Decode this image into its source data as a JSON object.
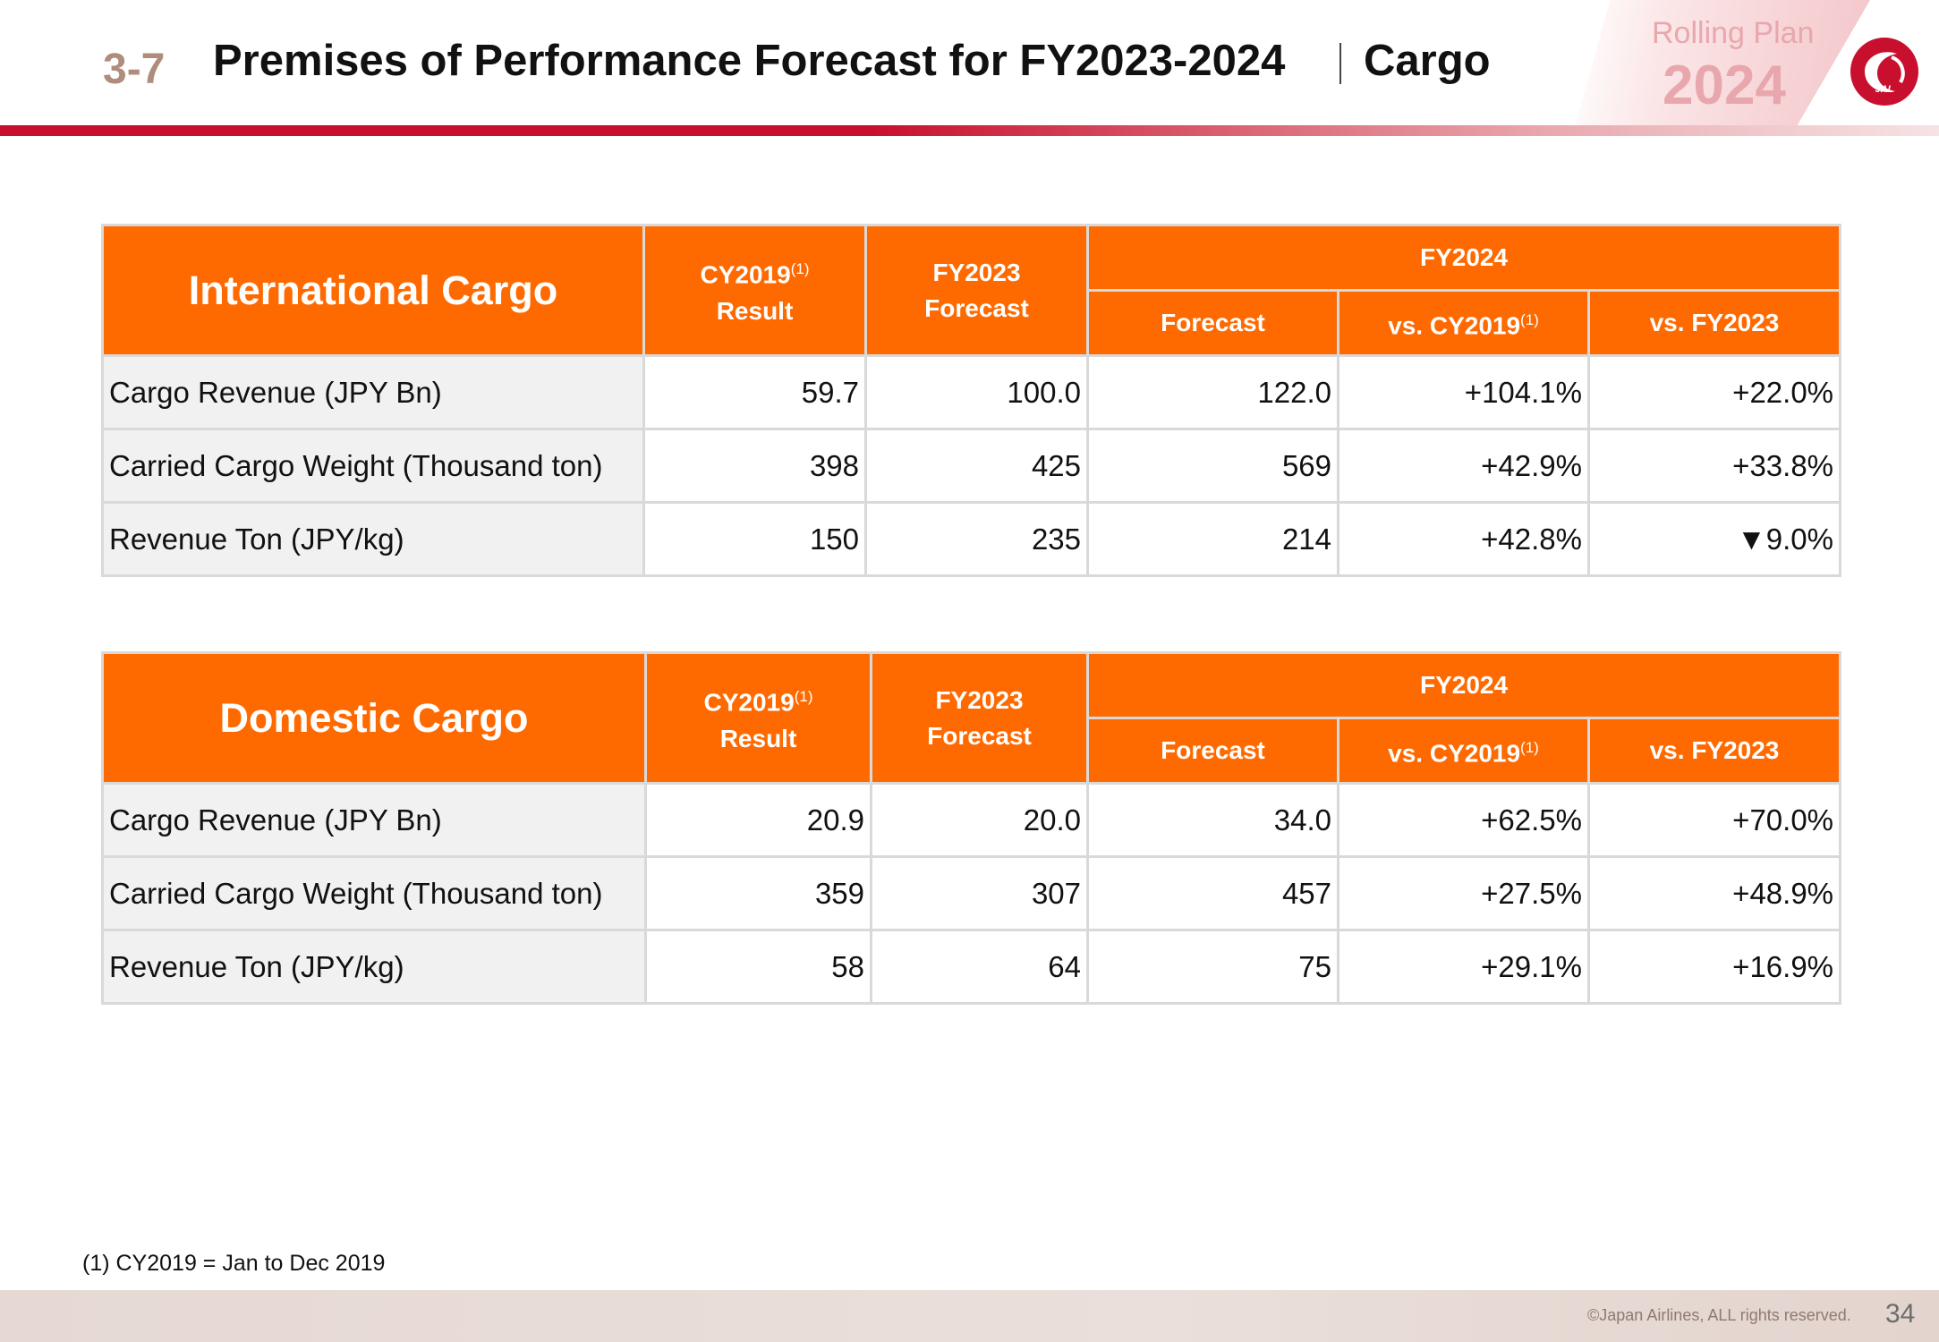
{
  "header": {
    "section_number": "3-7",
    "title": "Premises of Performance Forecast for FY2023-2024",
    "subtitle": "Cargo",
    "badge_label": "Rolling Plan",
    "badge_year": "2024",
    "logo_text": "JAL"
  },
  "international": {
    "title": "International Cargo",
    "col_cy2019": "CY2019",
    "col_cy2019_note": "(1)",
    "col_result": "Result",
    "col_fy2023": "FY2023",
    "col_fy2023_sub": "Forecast",
    "col_fy2024": "FY2024",
    "sub_forecast": "Forecast",
    "sub_vs_cy2019": "vs. CY2019",
    "sub_vs_cy2019_note": "(1)",
    "sub_vs_fy2023": "vs. FY2023",
    "rows": [
      {
        "label": "Cargo Revenue (JPY Bn)",
        "cy2019": "59.7",
        "fy2023": "100.0",
        "fy2024": "122.0",
        "vs_cy2019": "+104.1%",
        "vs_fy2023": "+22.0%"
      },
      {
        "label": "Carried Cargo Weight (Thousand ton)",
        "cy2019": "398",
        "fy2023": "425",
        "fy2024": "569",
        "vs_cy2019": "+42.9%",
        "vs_fy2023": "+33.8%"
      },
      {
        "label": "Revenue Ton (JPY/kg)",
        "cy2019": "150",
        "fy2023": "235",
        "fy2024": "214",
        "vs_cy2019": "+42.8%",
        "vs_fy2023": "▼9.0%"
      }
    ]
  },
  "domestic": {
    "title": "Domestic Cargo",
    "col_cy2019": "CY2019",
    "col_cy2019_note": "(1)",
    "col_result": "Result",
    "col_fy2023": "FY2023",
    "col_fy2023_sub": "Forecast",
    "col_fy2024": "FY2024",
    "sub_forecast": "Forecast",
    "sub_vs_cy2019": "vs. CY2019",
    "sub_vs_cy2019_note": "(1)",
    "sub_vs_fy2023": "vs. FY2023",
    "rows": [
      {
        "label": "Cargo Revenue (JPY Bn)",
        "cy2019": "20.9",
        "fy2023": "20.0",
        "fy2024": "34.0",
        "vs_cy2019": "+62.5%",
        "vs_fy2023": "+70.0%"
      },
      {
        "label": "Carried Cargo Weight (Thousand ton)",
        "cy2019": "359",
        "fy2023": "307",
        "fy2024": "457",
        "vs_cy2019": "+27.5%",
        "vs_fy2023": "+48.9%"
      },
      {
        "label": "Revenue Ton (JPY/kg)",
        "cy2019": "58",
        "fy2023": "64",
        "fy2024": "75",
        "vs_cy2019": "+29.1%",
        "vs_fy2023": "+16.9%"
      }
    ]
  },
  "footnote": "(1) CY2019 = Jan to Dec 2019",
  "footer": {
    "copyright": "©Japan Airlines, ALL rights reserved.",
    "page_number": "34"
  },
  "colors": {
    "table_header": "#ff6a00",
    "brand_red": "#c8102e",
    "section_number": "#b08c7c"
  }
}
